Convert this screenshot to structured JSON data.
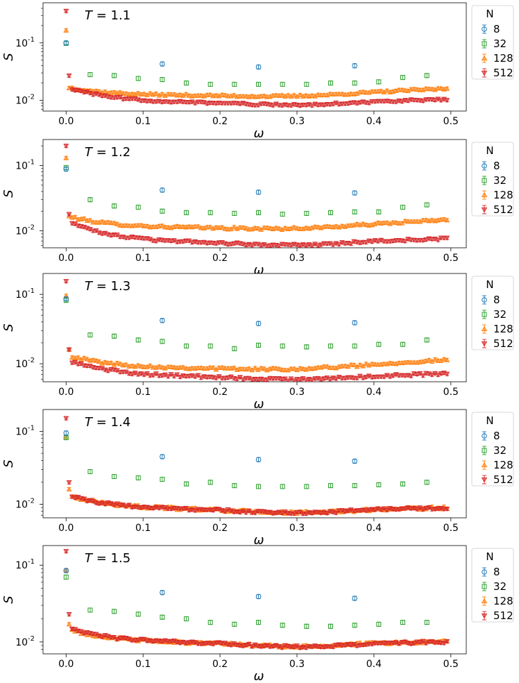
{
  "chart_data": [
    {
      "type": "scatter",
      "annotation": "T = 1.1",
      "xlabel": "ω",
      "ylabel": "S",
      "xlim": [
        -0.03,
        0.52
      ],
      "ylim": [
        0.0065,
        0.5
      ],
      "yscale": "log",
      "xticks": [
        "0.0",
        "0.1",
        "0.2",
        "0.3",
        "0.4",
        "0.5"
      ],
      "yticks": [
        "10^-2",
        "10^-1"
      ],
      "legend": {
        "title": "N",
        "entries": [
          "8",
          "32",
          "128",
          "512"
        ],
        "position": "outside-right"
      },
      "series": [
        {
          "name": "8",
          "color": "#1f77b4",
          "marker": "circle",
          "x": [
            0,
            0.125,
            0.25,
            0.375
          ],
          "y": [
            0.1,
            0.043,
            0.038,
            0.04
          ]
        },
        {
          "name": "32",
          "color": "#2ca02c",
          "marker": "square",
          "x": [
            0,
            0.03125,
            0.0625,
            0.09375,
            0.125,
            0.15625,
            0.1875,
            0.21875,
            0.25,
            0.28125,
            0.3125,
            0.34375,
            0.375,
            0.40625,
            0.4375,
            0.46875
          ],
          "y": [
            0.098,
            0.028,
            0.027,
            0.024,
            0.023,
            0.02,
            0.019,
            0.019,
            0.019,
            0.019,
            0.019,
            0.02,
            0.02,
            0.021,
            0.025,
            0.027
          ]
        },
        {
          "name": "128",
          "color": "#ff7f0e",
          "marker": "triangle-up",
          "model": {
            "x_max": 0.5,
            "first": 0.165,
            "a": 0.005,
            "b": 0.0,
            "c": 0.0,
            "d": 0.012,
            "dip": 0.3,
            "dip_w": 0.12
          }
        },
        {
          "name": "512",
          "color": "#d62728",
          "marker": "triangle-down",
          "model": {
            "x_max": 0.5,
            "first": 0.36,
            "first2": 0.027,
            "a": 0.008,
            "b": 0.0,
            "c": 0.009,
            "d": 0.003,
            "dip": 0.3,
            "dip_w": 0.1
          }
        }
      ]
    },
    {
      "type": "scatter",
      "annotation": "T = 1.2",
      "xlabel": "ω",
      "ylabel": "S",
      "xlim": [
        -0.03,
        0.52
      ],
      "ylim": [
        0.0055,
        0.25
      ],
      "yscale": "log",
      "xticks": [
        "0.0",
        "0.1",
        "0.2",
        "0.3",
        "0.4",
        "0.5"
      ],
      "yticks": [
        "10^-2",
        "10^-1"
      ],
      "legend": {
        "title": "N",
        "entries": [
          "8",
          "32",
          "128",
          "512"
        ],
        "position": "outside-right"
      },
      "series": [
        {
          "name": "8",
          "color": "#1f77b4",
          "marker": "circle",
          "x": [
            0,
            0.125,
            0.25,
            0.375
          ],
          "y": [
            0.088,
            0.042,
            0.039,
            0.038
          ]
        },
        {
          "name": "32",
          "color": "#2ca02c",
          "marker": "square",
          "x": [
            0,
            0.03125,
            0.0625,
            0.09375,
            0.125,
            0.15625,
            0.1875,
            0.21875,
            0.25,
            0.28125,
            0.3125,
            0.34375,
            0.375,
            0.40625,
            0.4375,
            0.46875
          ],
          "y": [
            0.093,
            0.03,
            0.024,
            0.023,
            0.02,
            0.019,
            0.019,
            0.0185,
            0.019,
            0.018,
            0.0185,
            0.019,
            0.0195,
            0.0195,
            0.023,
            0.025
          ]
        },
        {
          "name": "128",
          "color": "#ff7f0e",
          "marker": "triangle-up",
          "model": {
            "x_max": 0.5,
            "first": 0.13,
            "a": 0.006,
            "b": 0.0,
            "c": 0.0,
            "d": 0.011,
            "dip": 0.3,
            "dip_w": 0.12
          }
        },
        {
          "name": "512",
          "color": "#d62728",
          "marker": "triangle-down",
          "model": {
            "x_max": 0.5,
            "first": 0.2,
            "first2": 0.018,
            "a": 0.0075,
            "b": 0.0,
            "c": 0.0065,
            "d": 0.0025,
            "dip": 0.3,
            "dip_w": 0.1
          }
        }
      ]
    },
    {
      "type": "scatter",
      "annotation": "T = 1.3",
      "xlabel": "ω",
      "ylabel": "S",
      "xlim": [
        -0.03,
        0.52
      ],
      "ylim": [
        0.0055,
        0.2
      ],
      "yscale": "log",
      "xticks": [
        "0.0",
        "0.1",
        "0.2",
        "0.3",
        "0.4",
        "0.5"
      ],
      "yticks": [
        "10^-2",
        "10^-1"
      ],
      "legend": {
        "title": "N",
        "entries": [
          "8",
          "32",
          "128",
          "512"
        ],
        "position": "outside-right"
      },
      "series": [
        {
          "name": "8",
          "color": "#1f77b4",
          "marker": "circle",
          "x": [
            0,
            0.125,
            0.25,
            0.375
          ],
          "y": [
            0.086,
            0.042,
            0.038,
            0.039
          ]
        },
        {
          "name": "32",
          "color": "#2ca02c",
          "marker": "square",
          "x": [
            0,
            0.03125,
            0.0625,
            0.09375,
            0.125,
            0.15625,
            0.1875,
            0.21875,
            0.25,
            0.28125,
            0.3125,
            0.34375,
            0.375,
            0.40625,
            0.4375,
            0.46875
          ],
          "y": [
            0.082,
            0.026,
            0.025,
            0.022,
            0.021,
            0.018,
            0.018,
            0.0165,
            0.0185,
            0.018,
            0.0175,
            0.018,
            0.018,
            0.019,
            0.019,
            0.022
          ]
        },
        {
          "name": "128",
          "color": "#ff7f0e",
          "marker": "triangle-up",
          "model": {
            "x_max": 0.5,
            "first": 0.095,
            "first2": 0.016,
            "a": 0.005,
            "b": 0.0,
            "c": 0.0,
            "d": 0.0085,
            "dip": 0.3,
            "dip_w": 0.12
          }
        },
        {
          "name": "512",
          "color": "#d62728",
          "marker": "triangle-down",
          "model": {
            "x_max": 0.5,
            "first": 0.155,
            "first2": 0.016,
            "a": 0.005,
            "b": 0.0,
            "c": 0.0065,
            "d": 0.0015,
            "dip": 0.3,
            "dip_w": 0.1
          }
        }
      ]
    },
    {
      "type": "scatter",
      "annotation": "T = 1.4",
      "xlabel": "ω",
      "ylabel": "S",
      "xlim": [
        -0.03,
        0.52
      ],
      "ylim": [
        0.0065,
        0.2
      ],
      "yscale": "log",
      "xticks": [
        "0.0",
        "0.1",
        "0.2",
        "0.3",
        "0.4",
        "0.5"
      ],
      "yticks": [
        "10^-2",
        "10^-1"
      ],
      "legend": {
        "title": "N",
        "entries": [
          "8",
          "32",
          "128",
          "512"
        ],
        "position": "outside-right"
      },
      "series": [
        {
          "name": "8",
          "color": "#1f77b4",
          "marker": "circle",
          "x": [
            0,
            0.125,
            0.25,
            0.375
          ],
          "y": [
            0.095,
            0.045,
            0.041,
            0.039
          ]
        },
        {
          "name": "32",
          "color": "#2ca02c",
          "marker": "square",
          "x": [
            0,
            0.03125,
            0.0625,
            0.09375,
            0.125,
            0.15625,
            0.1875,
            0.21875,
            0.25,
            0.28125,
            0.3125,
            0.34375,
            0.375,
            0.40625,
            0.4375,
            0.46875
          ],
          "y": [
            0.082,
            0.028,
            0.024,
            0.023,
            0.022,
            0.019,
            0.02,
            0.018,
            0.0175,
            0.0175,
            0.0175,
            0.018,
            0.018,
            0.0185,
            0.019,
            0.02
          ]
        },
        {
          "name": "128",
          "color": "#ff7f0e",
          "marker": "triangle-up",
          "model": {
            "x_max": 0.5,
            "first": 0.084,
            "first2": 0.016,
            "a": 0.005,
            "b": 0.0,
            "c": 0.0085,
            "d": 0.001,
            "dip": 0.3,
            "dip_w": 0.1
          }
        },
        {
          "name": "512",
          "color": "#d62728",
          "marker": "triangle-down",
          "model": {
            "x_max": 0.5,
            "first": 0.152,
            "first2": 0.02,
            "a": 0.005,
            "b": 0.0,
            "c": 0.0085,
            "d": 0.001,
            "dip": 0.3,
            "dip_w": 0.1
          }
        }
      ]
    },
    {
      "type": "scatter",
      "annotation": "T = 1.5",
      "xlabel": "ω",
      "ylabel": "S",
      "xlim": [
        -0.03,
        0.52
      ],
      "ylim": [
        0.007,
        0.18
      ],
      "yscale": "log",
      "xticks": [
        "0.0",
        "0.1",
        "0.2",
        "0.3",
        "0.4",
        "0.5"
      ],
      "yticks": [
        "10^-2",
        "10^-1"
      ],
      "legend": {
        "title": "N",
        "entries": [
          "8",
          "32",
          "128",
          "512"
        ],
        "position": "outside-right"
      },
      "series": [
        {
          "name": "8",
          "color": "#1f77b4",
          "marker": "circle",
          "x": [
            0,
            0.125,
            0.25,
            0.375
          ],
          "y": [
            0.085,
            0.044,
            0.039,
            0.037
          ]
        },
        {
          "name": "32",
          "color": "#2ca02c",
          "marker": "square",
          "x": [
            0,
            0.03125,
            0.0625,
            0.09375,
            0.125,
            0.15625,
            0.1875,
            0.21875,
            0.25,
            0.28125,
            0.3125,
            0.34375,
            0.375,
            0.40625,
            0.4375,
            0.46875
          ],
          "y": [
            0.07,
            0.026,
            0.025,
            0.023,
            0.021,
            0.02,
            0.018,
            0.017,
            0.018,
            0.0165,
            0.016,
            0.016,
            0.0165,
            0.017,
            0.018,
            0.018
          ]
        },
        {
          "name": "128",
          "color": "#ff7f0e",
          "marker": "triangle-up",
          "model": {
            "x_max": 0.5,
            "first": 0.086,
            "first2": 0.017,
            "a": 0.005,
            "b": 0.0,
            "c": 0.0098,
            "d": 0.0005,
            "dip": 0.3,
            "dip_w": 0.1
          }
        },
        {
          "name": "512",
          "color": "#d62728",
          "marker": "triangle-down",
          "model": {
            "x_max": 0.5,
            "first": 0.152,
            "first2": 0.023,
            "a": 0.0055,
            "b": 0.0,
            "c": 0.0098,
            "d": 0.0005,
            "dip": 0.3,
            "dip_w": 0.1
          }
        }
      ]
    }
  ]
}
